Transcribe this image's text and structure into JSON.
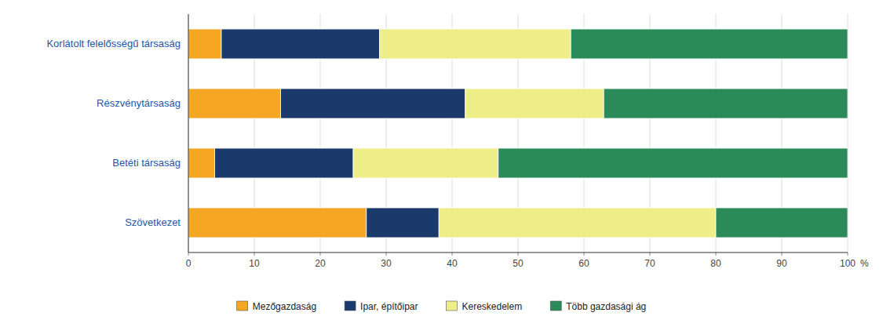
{
  "chart_data": {
    "type": "bar",
    "orientation": "horizontal",
    "stacked": true,
    "categories": [
      "Korlátolt felelősségű társaság",
      "Részvénytársaság",
      "Betéti társaság",
      "Szövetkezet"
    ],
    "series": [
      {
        "name": "Mezőgazdaság",
        "color": "#F5A623",
        "values": [
          5,
          14,
          4,
          27
        ]
      },
      {
        "name": "Ipar, építőipar",
        "color": "#1A3A6B",
        "values": [
          24,
          28,
          21,
          11
        ]
      },
      {
        "name": "Kereskedelem",
        "color": "#EEEE88",
        "values": [
          29,
          21,
          22,
          42
        ]
      },
      {
        "name": "Több gazdasági ág",
        "color": "#2A8A5A",
        "values": [
          42,
          37,
          53,
          20
        ]
      }
    ],
    "xlabel": "%",
    "xlim": [
      0,
      100
    ],
    "xticks": [
      0,
      10,
      20,
      30,
      40,
      50,
      60,
      70,
      80,
      90,
      100
    ],
    "grid": true,
    "legend": "bottom"
  }
}
